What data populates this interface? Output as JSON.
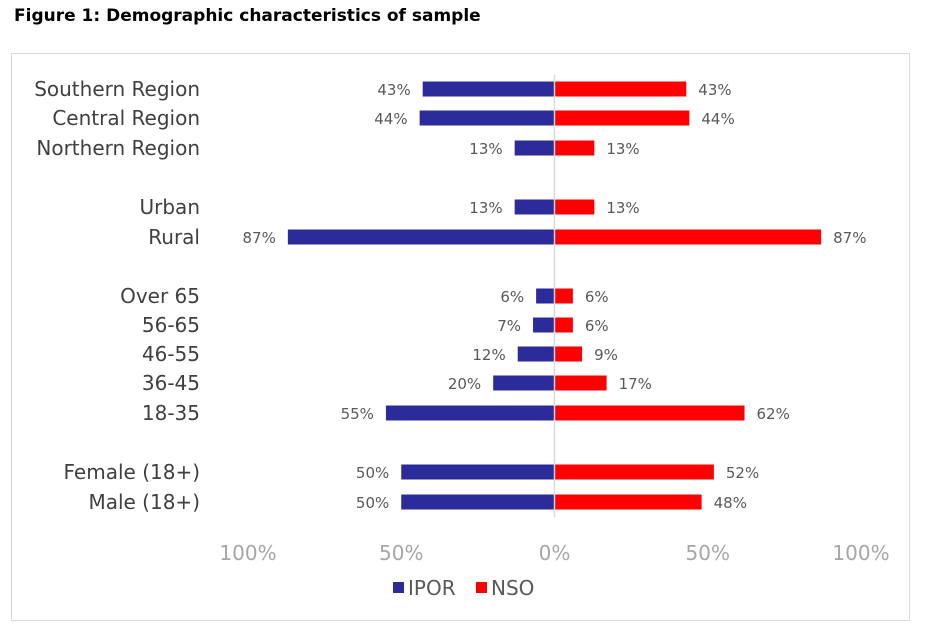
{
  "figure_title": "Figure 1: Demographic characteristics of sample",
  "chart_data": {
    "type": "bar",
    "orientation": "horizontal-diverging",
    "title": "Figure 1: Demographic characteristics of sample",
    "categories": [
      "Southern Region",
      "Central Region",
      "Northern Region",
      "Urban",
      "Rural",
      "Over 65",
      "56-65",
      "46-55",
      "36-45",
      "18-35",
      "Female (18+)",
      "Male (18+)"
    ],
    "groups": [
      [
        0,
        1,
        2
      ],
      [
        3,
        4
      ],
      [
        5,
        6,
        7,
        8,
        9
      ],
      [
        10,
        11
      ]
    ],
    "series": [
      {
        "name": "IPOR",
        "color": "#2b2b9a",
        "direction": "left",
        "values": [
          43,
          44,
          13,
          13,
          87,
          6,
          7,
          12,
          20,
          55,
          50,
          50
        ],
        "labels": [
          "43%",
          "44%",
          "13%",
          "13%",
          "87%",
          "6%",
          "7%",
          "12%",
          "20%",
          "55%",
          "50%",
          "50%"
        ]
      },
      {
        "name": "NSO",
        "color": "#ff0000",
        "direction": "right",
        "values": [
          43,
          44,
          13,
          13,
          87,
          6,
          6,
          9,
          17,
          62,
          52,
          48
        ],
        "labels": [
          "43%",
          "44%",
          "13%",
          "13%",
          "87%",
          "6%",
          "6%",
          "9%",
          "17%",
          "62%",
          "52%",
          "48%"
        ]
      }
    ],
    "x_ticks": [
      {
        "value": -100,
        "label": "100%"
      },
      {
        "value": -50,
        "label": "50%"
      },
      {
        "value": 0,
        "label": "0%"
      },
      {
        "value": 50,
        "label": "50%"
      },
      {
        "value": 100,
        "label": "100%"
      }
    ],
    "xlim": [
      -100,
      100
    ],
    "legend_position": "bottom",
    "grid": false,
    "axis_color": "#d9d9d9"
  }
}
